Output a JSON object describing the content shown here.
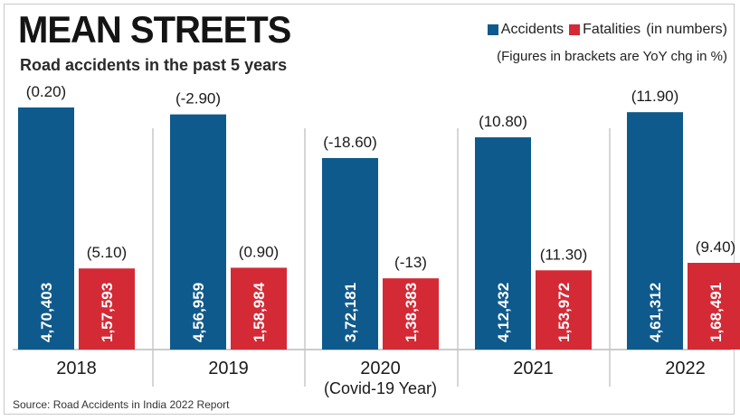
{
  "header": {
    "title": "MEAN STREETS",
    "subtitle": "Road accidents in the past 5 years",
    "legend_accidents": "Accidents",
    "legend_fatalities": "Fatalities",
    "legend_units": "(in numbers)",
    "legend_note": "(Figures in brackets are YoY chg in %)"
  },
  "footer": {
    "source": "Source: Road Accidents in India 2022 Report"
  },
  "colors": {
    "accidents": "#0f5a8c",
    "fatalities": "#d42a36",
    "divider": "#c8c8c8",
    "baseline": "#9a9a9a"
  },
  "chart_data": {
    "type": "bar",
    "categories": [
      "2018",
      "2019",
      "2020",
      "2021",
      "2022"
    ],
    "category_notes": [
      "",
      "",
      "(Covid-19 Year)",
      "",
      ""
    ],
    "series": [
      {
        "name": "Accidents",
        "values": [
          470403,
          456959,
          372181,
          412432,
          461312
        ],
        "value_labels": [
          "4,70,403",
          "4,56,959",
          "3,72,181",
          "4,12,432",
          "4,61,312"
        ],
        "change_labels": [
          "(0.20)",
          "(-2.90)",
          "(-18.60)",
          "(10.80)",
          "(11.90)"
        ]
      },
      {
        "name": "Fatalities",
        "values": [
          157593,
          158984,
          138383,
          153972,
          168491
        ],
        "value_labels": [
          "1,57,593",
          "1,58,984",
          "1,38,383",
          "1,53,972",
          "1,68,491"
        ],
        "change_labels": [
          "(5.10)",
          "(0.90)",
          "(-13)",
          "(11.30)",
          "(9.40)"
        ]
      }
    ]
  }
}
